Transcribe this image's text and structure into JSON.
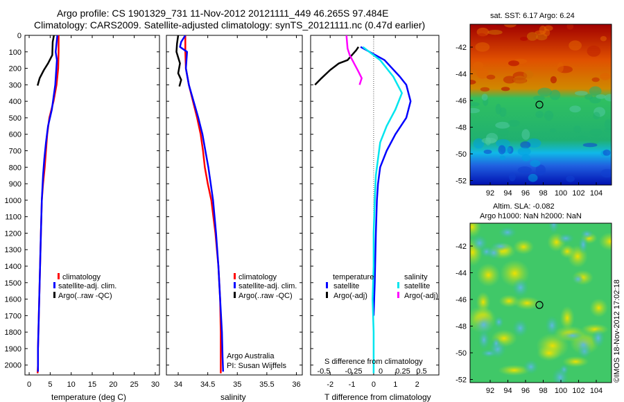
{
  "title": {
    "line1": "Argo profile: CS 1901329_731 11-Nov-2012 20121111_449 46.265S 97.484E",
    "line2": "Climatology: CARS2009. Satellite-adjusted climatology: synTS_20121111.nc (0.47d earlier)"
  },
  "colors": {
    "climatology": "#ff0000",
    "satellite": "#0000ff",
    "argo": "#000000",
    "temp_satellite": "#0000ff",
    "sal_satellite": "#00e5ee",
    "sal_argo": "#ff00ff"
  },
  "chart_data": [
    {
      "id": "temperature",
      "type": "line",
      "xlabel": "temperature (deg C)",
      "ylabel": "",
      "xlim": [
        -1,
        31
      ],
      "ylim": [
        2060,
        0
      ],
      "xticks": [
        0,
        5,
        10,
        15,
        20,
        25,
        30
      ],
      "xticklabels": [
        "0",
        "5",
        "10",
        "15",
        "20",
        "25",
        "30"
      ],
      "yticks": [
        0,
        100,
        200,
        300,
        400,
        500,
        600,
        700,
        800,
        900,
        1000,
        1100,
        1200,
        1300,
        1400,
        1500,
        1600,
        1700,
        1800,
        1900,
        2000
      ],
      "yticklabels": [
        "0",
        "100",
        "200",
        "300",
        "400",
        "500",
        "600",
        "700",
        "800",
        "900",
        "1000",
        "1100",
        "1200",
        "1300",
        "1400",
        "1500",
        "1600",
        "1700",
        "1800",
        "1900",
        "2000"
      ],
      "legend": [
        "climatology",
        "satellite-adj. clim.",
        "Argo(..raw -QC)"
      ],
      "legend_location": "lower-center",
      "series": [
        {
          "name": "climatology",
          "color": "#ff0000",
          "x": [
            7.0,
            7.0,
            6.9,
            6.5,
            5.8,
            4.8,
            4.3,
            4.0,
            3.7,
            3.3,
            3.0,
            2.8,
            2.6,
            2.5,
            2.4,
            2.3,
            2.2,
            2.1,
            2.1,
            2.0
          ],
          "y": [
            0,
            100,
            200,
            300,
            400,
            500,
            600,
            700,
            800,
            900,
            1000,
            1200,
            1400,
            1500,
            1600,
            1700,
            1800,
            1900,
            2000,
            2050
          ]
        },
        {
          "name": "satellite-adj. clim.",
          "color": "#0000ff",
          "x": [
            6.7,
            6.5,
            6.3,
            6.6,
            6.2,
            5.4,
            4.5,
            4.0,
            3.6,
            3.3,
            3.0,
            2.8,
            2.6,
            2.5,
            2.4,
            2.3,
            2.2,
            2.1,
            2.1
          ],
          "y": [
            0,
            50,
            100,
            150,
            300,
            450,
            550,
            650,
            750,
            850,
            1000,
            1200,
            1400,
            1500,
            1600,
            1700,
            1800,
            1900,
            2040
          ]
        },
        {
          "name": "Argo(..raw -QC)",
          "color": "#000000",
          "x": [
            5.9,
            5.6,
            5.5,
            4.5,
            3.5,
            2.5,
            2.0
          ],
          "y": [
            0,
            40,
            120,
            170,
            210,
            260,
            305
          ]
        }
      ]
    },
    {
      "id": "salinity",
      "type": "line",
      "xlabel": "salinity",
      "ylabel": "",
      "xlim": [
        33.8,
        36.1
      ],
      "ylim": [
        2060,
        0
      ],
      "xticks": [
        34,
        34.5,
        35,
        35.5,
        36
      ],
      "xticklabels": [
        "34",
        "34.5",
        "35",
        "35.5",
        "36"
      ],
      "legend": [
        "climatology",
        "satellite-adj. clim.",
        "Argo(..raw -QC)"
      ],
      "legend_location": "lower-center",
      "annotation": [
        "Argo Australia",
        "PI: Susan Wijffels"
      ],
      "series": [
        {
          "name": "climatology",
          "color": "#ff0000",
          "x": [
            34.12,
            34.12,
            34.13,
            34.18,
            34.25,
            34.32,
            34.38,
            34.42,
            34.45,
            34.5,
            34.56,
            34.63,
            34.68,
            34.71,
            34.72,
            34.72
          ],
          "y": [
            0,
            100,
            200,
            300,
            400,
            500,
            600,
            700,
            800,
            900,
            1000,
            1200,
            1400,
            1600,
            1800,
            2050
          ]
        },
        {
          "name": "satellite-adj. clim.",
          "color": "#0000ff",
          "x": [
            34.12,
            34.05,
            34.03,
            34.15,
            34.13,
            34.18,
            34.26,
            34.34,
            34.41,
            34.46,
            34.51,
            34.55,
            34.59,
            34.64,
            34.68,
            34.71,
            34.74,
            34.75,
            34.76
          ],
          "y": [
            0,
            40,
            70,
            100,
            200,
            300,
            400,
            500,
            600,
            700,
            800,
            900,
            1000,
            1200,
            1400,
            1600,
            1800,
            1950,
            2040
          ]
        },
        {
          "name": "Argo(..raw -QC)",
          "color": "#000000",
          "x": [
            34.0,
            33.98,
            33.97,
            34.03,
            34.0,
            34.05,
            34.02
          ],
          "y": [
            0,
            50,
            100,
            170,
            230,
            270,
            310
          ]
        }
      ]
    },
    {
      "id": "difference",
      "type": "line",
      "xlabel": "T difference from climatology",
      "xlabel2": "S difference from climatology",
      "ylabel": "",
      "xlim": [
        -2.9,
        3.0
      ],
      "ylim": [
        2060,
        0
      ],
      "xticks": [
        -2,
        -1,
        0,
        1,
        2
      ],
      "xticklabels": [
        "-2",
        "-1",
        "0",
        "1",
        "2"
      ],
      "x2ticks": [
        -0.5,
        -0.25,
        0,
        0.25,
        0.5
      ],
      "x2ticklabels": [
        "-0.5",
        "-0.25",
        "0",
        "0.25",
        "0.5"
      ],
      "legend_groups": [
        {
          "title": "temperature",
          "entries": [
            "satellite",
            "Argo(-adj)"
          ]
        },
        {
          "title": "salinity",
          "entries": [
            "satellite",
            "Argo(-adj)"
          ]
        }
      ],
      "series": [
        {
          "name": "temperature satellite",
          "color": "#0000ff",
          "x": [
            -0.6,
            0.5,
            1.2,
            1.5,
            1.7,
            1.5,
            1.0,
            0.6,
            0.3,
            0.2,
            0.15,
            0.1,
            0.05,
            0.0
          ],
          "y": [
            70,
            150,
            250,
            300,
            400,
            500,
            600,
            700,
            800,
            900,
            1000,
            1200,
            1500,
            1700
          ]
        },
        {
          "name": "temperature Argo(-adj)",
          "color": "#000000",
          "x": [
            -0.7,
            -0.8,
            -1.2,
            -1.6,
            -2.0,
            -2.4,
            -2.7
          ],
          "y": [
            70,
            90,
            150,
            170,
            210,
            260,
            300
          ]
        },
        {
          "name": "salinity satellite",
          "color": "#00e5ee",
          "x": [
            -0.5,
            0.3,
            0.9,
            1.3,
            1.0,
            0.6,
            0.3,
            0.2,
            0.1,
            0.05,
            0.0,
            0.0,
            -0.05,
            0.0,
            0.0
          ],
          "y": [
            70,
            150,
            250,
            350,
            450,
            550,
            650,
            750,
            850,
            1000,
            1200,
            1400,
            1600,
            1800,
            2050
          ]
        },
        {
          "name": "salinity Argo(-adj)",
          "color": "#ff00ff",
          "x": [
            -1.25,
            -1.2,
            -1.1,
            -0.9,
            -0.7,
            -0.55,
            -0.65
          ],
          "y": [
            0,
            80,
            120,
            170,
            220,
            260,
            300
          ]
        }
      ]
    }
  ],
  "maps": [
    {
      "id": "sst-map",
      "title": [
        "sat. SST: 6.17  Argo: 6.24"
      ],
      "xticks": [
        "92",
        "94",
        "96",
        "98",
        "100",
        "102",
        "104"
      ],
      "yticks": [
        "-42",
        "-44",
        "-46",
        "-48",
        "-50",
        "-52"
      ],
      "marker": {
        "lon": 97.48,
        "lat": -46.27
      }
    },
    {
      "id": "sla-map",
      "title": [
        "Altim. SLA: -0.082",
        "Argo h1000: NaN h2000: NaN"
      ],
      "xticks": [
        "92",
        "94",
        "96",
        "98",
        "100",
        "102",
        "104"
      ],
      "yticks": [
        "-42",
        "-44",
        "-46",
        "-48",
        "-50",
        "-52"
      ],
      "marker": {
        "lon": 97.48,
        "lat": -46.27
      }
    }
  ],
  "stamp": "©IMOS 18-Nov-2012 17:02:18"
}
